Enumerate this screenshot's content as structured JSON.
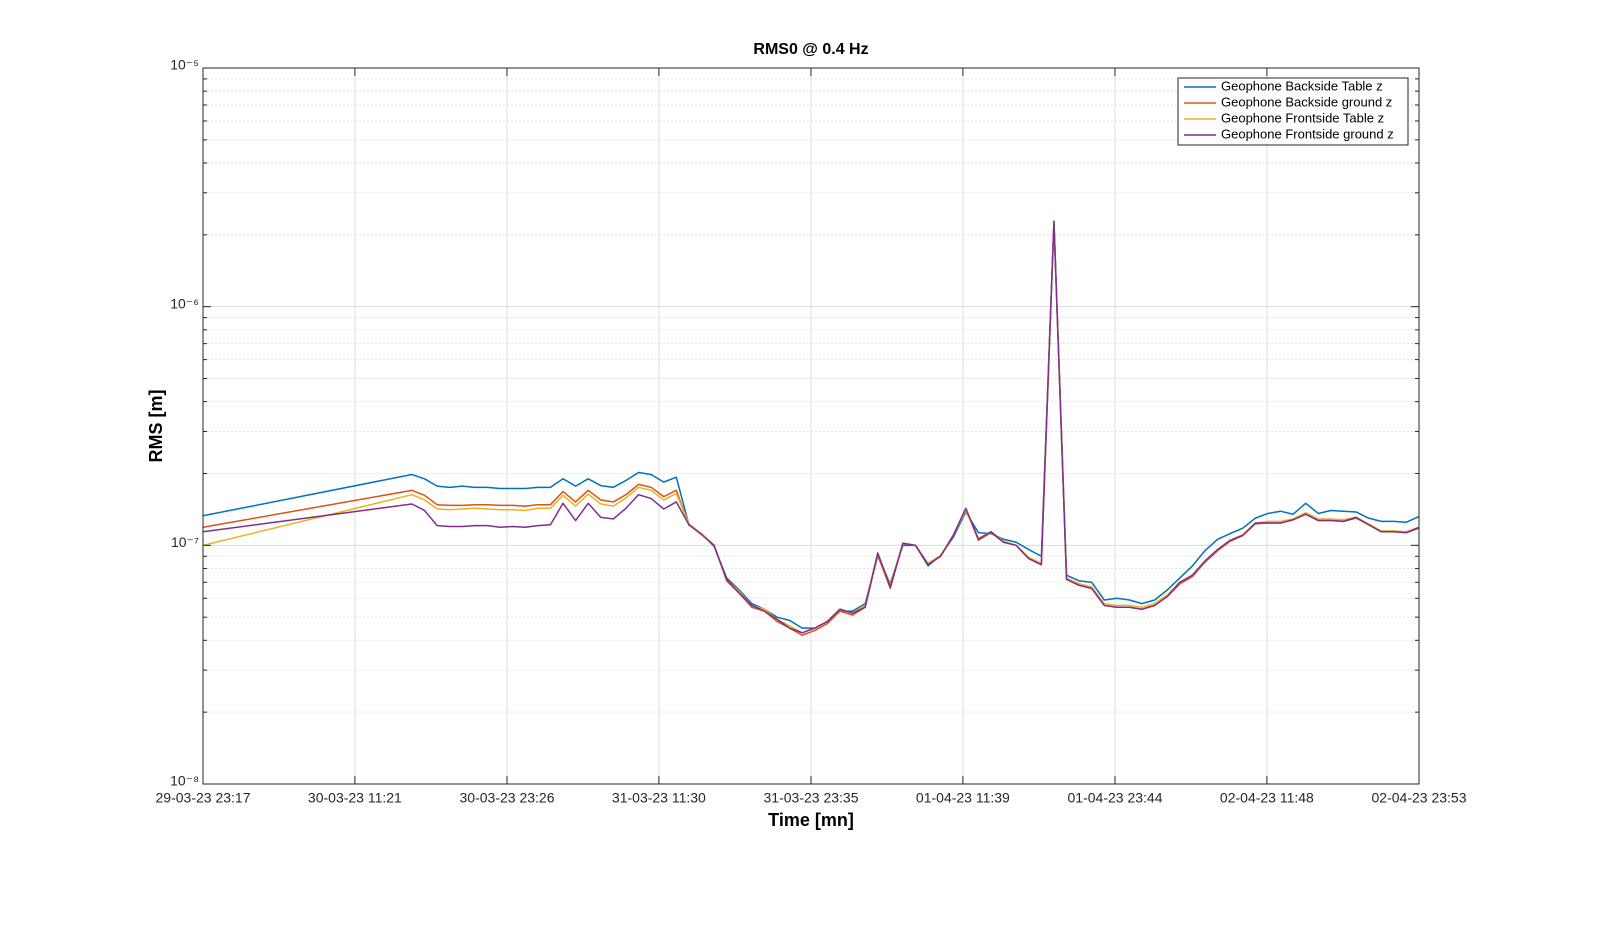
{
  "chart_data": {
    "type": "line",
    "title": "RMS0 @ 0.4 Hz",
    "xlabel": "Time [mn]",
    "ylabel": "RMS [m]",
    "yscale": "log",
    "grid": true,
    "minor_grid": true,
    "legend": "top-right",
    "xlim": [
      "29-03-23 23:17",
      "02-04-23 23:53"
    ],
    "xticks": [
      "29-03-23 23:17",
      "30-03-23 11:21",
      "30-03-23 23:26",
      "31-03-23 11:30",
      "31-03-23 23:35",
      "01-04-23 11:39",
      "01-04-23 23:44",
      "02-04-23 11:48",
      "02-04-23 23:53"
    ],
    "ylim": [
      1e-08,
      1e-05
    ],
    "yticks": [
      {
        "value": 1e-08,
        "label": "10⁻⁸"
      },
      {
        "value": 1e-07,
        "label": "10⁻⁷"
      },
      {
        "value": 1e-06,
        "label": "10⁻⁶"
      },
      {
        "value": 1e-05,
        "label": "10⁻⁵"
      }
    ],
    "x": [
      "29-03-23 23:17",
      "30-03-23 15:53",
      "30-03-23 16:53",
      "30-03-23 17:53",
      "30-03-23 18:53",
      "30-03-23 19:53",
      "30-03-23 20:53",
      "30-03-23 21:53",
      "30-03-23 22:53",
      "30-03-23 23:53",
      "31-03-23 00:53",
      "31-03-23 01:53",
      "31-03-23 02:53",
      "31-03-23 03:53",
      "31-03-23 04:53",
      "31-03-23 05:53",
      "31-03-23 06:53",
      "31-03-23 07:53",
      "31-03-23 08:53",
      "31-03-23 09:53",
      "31-03-23 10:53",
      "31-03-23 11:53",
      "31-03-23 12:53",
      "31-03-23 13:53",
      "31-03-23 14:53",
      "31-03-23 15:53",
      "31-03-23 16:53",
      "31-03-23 17:53",
      "31-03-23 18:53",
      "31-03-23 19:53",
      "31-03-23 20:53",
      "31-03-23 21:53",
      "31-03-23 22:53",
      "31-03-23 23:53",
      "01-04-23 00:53",
      "01-04-23 01:53",
      "01-04-23 02:53",
      "01-04-23 03:53",
      "01-04-23 04:53",
      "01-04-23 05:53",
      "01-04-23 06:53",
      "01-04-23 07:53",
      "01-04-23 08:53",
      "01-04-23 09:53",
      "01-04-23 10:53",
      "01-04-23 11:53",
      "01-04-23 12:53",
      "01-04-23 13:53",
      "01-04-23 14:53",
      "01-04-23 15:53",
      "01-04-23 16:53",
      "01-04-23 17:53",
      "01-04-23 18:53",
      "01-04-23 19:53",
      "01-04-23 20:53",
      "01-04-23 21:53",
      "01-04-23 22:53",
      "01-04-23 23:53",
      "02-04-23 00:53",
      "02-04-23 01:53",
      "02-04-23 02:53",
      "02-04-23 03:53",
      "02-04-23 04:53",
      "02-04-23 05:53",
      "02-04-23 06:53",
      "02-04-23 07:53",
      "02-04-23 08:53",
      "02-04-23 09:53",
      "02-04-23 10:53",
      "02-04-23 11:53",
      "02-04-23 12:53",
      "02-04-23 13:53",
      "02-04-23 14:53",
      "02-04-23 15:53",
      "02-04-23 16:53",
      "02-04-23 17:53",
      "02-04-23 18:53",
      "02-04-23 19:53",
      "02-04-23 20:53",
      "02-04-23 21:53",
      "02-04-23 22:53",
      "02-04-23 23:53"
    ],
    "series": [
      {
        "name": "Geophone Backside Table z",
        "color": "#0072bd",
        "values": [
          1.33e-07,
          1.98e-07,
          1.9e-07,
          1.77e-07,
          1.75e-07,
          1.77e-07,
          1.75e-07,
          1.75e-07,
          1.73e-07,
          1.73e-07,
          1.73e-07,
          1.75e-07,
          1.75e-07,
          1.9e-07,
          1.77e-07,
          1.9e-07,
          1.78e-07,
          1.75e-07,
          1.87e-07,
          2.02e-07,
          1.98e-07,
          1.84e-07,
          1.93e-07,
          1.22e-07,
          1.12e-07,
          9.9e-08,
          7.3e-08,
          6.5e-08,
          5.7e-08,
          5.4e-08,
          5e-08,
          4.85e-08,
          4.5e-08,
          4.5e-08,
          4.8e-08,
          5.3e-08,
          5.3e-08,
          5.7e-08,
          9e-08,
          6.9e-08,
          1e-07,
          1e-07,
          8.2e-08,
          9.1e-08,
          1.08e-07,
          1.38e-07,
          1.13e-07,
          1.12e-07,
          1.06e-07,
          1.03e-07,
          9.6e-08,
          9e-08,
          2.28e-06,
          7.5e-08,
          7.1e-08,
          7e-08,
          5.9e-08,
          6e-08,
          5.9e-08,
          5.7e-08,
          5.9e-08,
          6.5e-08,
          7.3e-08,
          8.2e-08,
          9.5e-08,
          1.06e-07,
          1.12e-07,
          1.18e-07,
          1.3e-07,
          1.36e-07,
          1.39e-07,
          1.35e-07,
          1.5e-07,
          1.36e-07,
          1.4e-07,
          1.39e-07,
          1.38e-07,
          1.3e-07,
          1.26e-07,
          1.26e-07,
          1.25e-07,
          1.32e-07
        ]
      },
      {
        "name": "Geophone Backside ground z",
        "color": "#d95319",
        "values": [
          1.19e-07,
          1.7e-07,
          1.62e-07,
          1.48e-07,
          1.47e-07,
          1.47e-07,
          1.48e-07,
          1.48e-07,
          1.47e-07,
          1.47e-07,
          1.46e-07,
          1.48e-07,
          1.48e-07,
          1.68e-07,
          1.52e-07,
          1.7e-07,
          1.55e-07,
          1.52e-07,
          1.63e-07,
          1.8e-07,
          1.75e-07,
          1.6e-07,
          1.7e-07,
          1.22e-07,
          1.12e-07,
          1e-07,
          7.1e-08,
          6.3e-08,
          5.5e-08,
          5.3e-08,
          4.8e-08,
          4.5e-08,
          4.2e-08,
          4.4e-08,
          4.7e-08,
          5.3e-08,
          5.1e-08,
          5.5e-08,
          9.1e-08,
          6.6e-08,
          1.02e-07,
          1e-07,
          8.3e-08,
          9e-08,
          1.1e-07,
          1.42e-07,
          1.05e-07,
          1.13e-07,
          1.03e-07,
          1e-07,
          8.8e-08,
          8.3e-08,
          2.25e-06,
          7.2e-08,
          6.8e-08,
          6.6e-08,
          5.6e-08,
          5.5e-08,
          5.5e-08,
          5.4e-08,
          5.6e-08,
          6.1e-08,
          6.9e-08,
          7.4e-08,
          8.5e-08,
          9.5e-08,
          1.04e-07,
          1.1e-07,
          1.23e-07,
          1.24e-07,
          1.24e-07,
          1.28e-07,
          1.35e-07,
          1.27e-07,
          1.27e-07,
          1.26e-07,
          1.3e-07,
          1.22e-07,
          1.14e-07,
          1.14e-07,
          1.13e-07,
          1.18e-07
        ]
      },
      {
        "name": "Geophone Frontside Table z",
        "color": "#edb120",
        "values": [
          1e-07,
          1.63e-07,
          1.55e-07,
          1.42e-07,
          1.41e-07,
          1.42e-07,
          1.43e-07,
          1.42e-07,
          1.41e-07,
          1.41e-07,
          1.4e-07,
          1.43e-07,
          1.43e-07,
          1.62e-07,
          1.46e-07,
          1.64e-07,
          1.49e-07,
          1.46e-07,
          1.58e-07,
          1.75e-07,
          1.7e-07,
          1.55e-07,
          1.65e-07,
          1.23e-07,
          1.12e-07,
          1e-07,
          7.2e-08,
          6.4e-08,
          5.6e-08,
          5.4e-08,
          4.9e-08,
          4.6e-08,
          4.3e-08,
          4.5e-08,
          4.8e-08,
          5.4e-08,
          5.2e-08,
          5.6e-08,
          9.2e-08,
          6.8e-08,
          1.02e-07,
          1e-07,
          8.4e-08,
          9.1e-08,
          1.1e-07,
          1.4e-07,
          1.07e-07,
          1.14e-07,
          1.04e-07,
          1e-07,
          8.9e-08,
          8.4e-08,
          2.26e-06,
          7.3e-08,
          6.9e-08,
          6.7e-08,
          5.7e-08,
          5.6e-08,
          5.6e-08,
          5.5e-08,
          5.7e-08,
          6.2e-08,
          7e-08,
          7.5e-08,
          8.6e-08,
          9.6e-08,
          1.05e-07,
          1.11e-07,
          1.24e-07,
          1.26e-07,
          1.26e-07,
          1.29e-07,
          1.37e-07,
          1.29e-07,
          1.29e-07,
          1.28e-07,
          1.31e-07,
          1.23e-07,
          1.15e-07,
          1.15e-07,
          1.14e-07,
          1.19e-07
        ]
      },
      {
        "name": "Geophone Frontside ground z",
        "color": "#7e2f8e",
        "values": [
          1.14e-07,
          1.49e-07,
          1.4e-07,
          1.21e-07,
          1.2e-07,
          1.2e-07,
          1.21e-07,
          1.21e-07,
          1.19e-07,
          1.2e-07,
          1.19e-07,
          1.21e-07,
          1.22e-07,
          1.5e-07,
          1.27e-07,
          1.5e-07,
          1.31e-07,
          1.29e-07,
          1.43e-07,
          1.63e-07,
          1.57e-07,
          1.42e-07,
          1.52e-07,
          1.22e-07,
          1.11e-07,
          1e-07,
          7.2e-08,
          6.3e-08,
          5.6e-08,
          5.3e-08,
          4.9e-08,
          4.5e-08,
          4.3e-08,
          4.5e-08,
          4.8e-08,
          5.4e-08,
          5.2e-08,
          5.5e-08,
          9.3e-08,
          6.7e-08,
          1.02e-07,
          1e-07,
          8.3e-08,
          9e-08,
          1.1e-07,
          1.43e-07,
          1.06e-07,
          1.14e-07,
          1.03e-07,
          1e-07,
          8.8e-08,
          8.3e-08,
          2.28e-06,
          7.2e-08,
          6.8e-08,
          6.6e-08,
          5.6e-08,
          5.5e-08,
          5.5e-08,
          5.4e-08,
          5.6e-08,
          6.1e-08,
          7e-08,
          7.5e-08,
          8.6e-08,
          9.6e-08,
          1.05e-07,
          1.1e-07,
          1.24e-07,
          1.24e-07,
          1.24e-07,
          1.28e-07,
          1.35e-07,
          1.27e-07,
          1.27e-07,
          1.26e-07,
          1.31e-07,
          1.22e-07,
          1.14e-07,
          1.14e-07,
          1.13e-07,
          1.19e-07
        ]
      }
    ]
  }
}
